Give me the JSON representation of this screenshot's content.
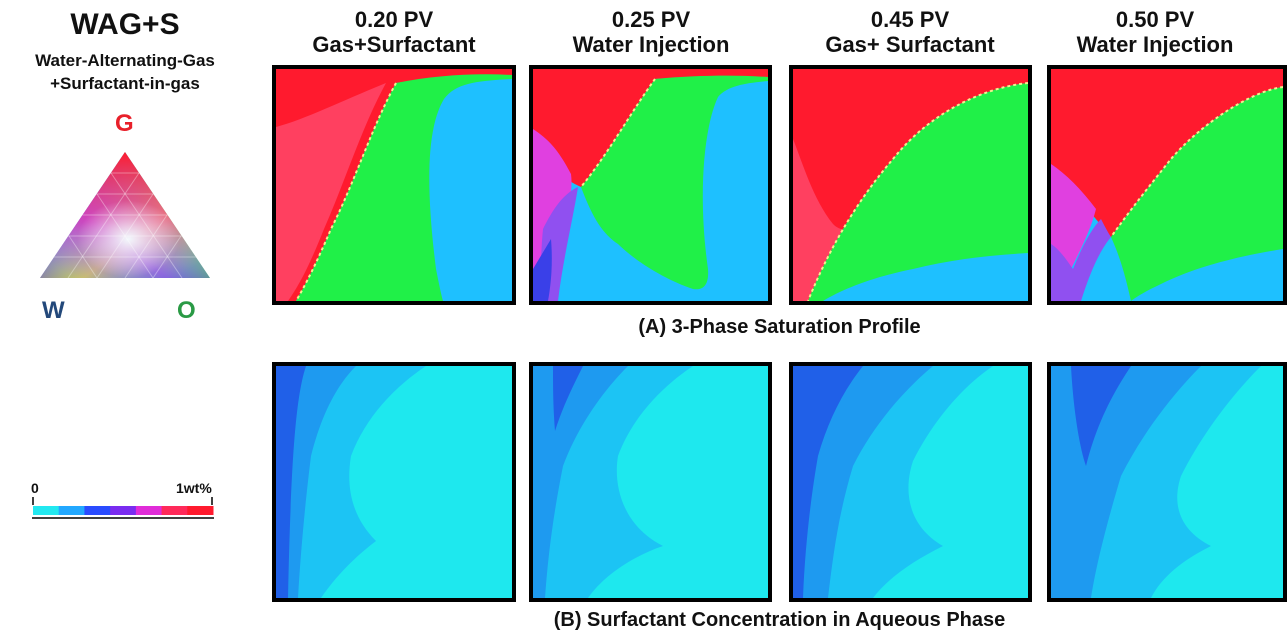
{
  "legend": {
    "title": "WAG+S",
    "subtitle_line1": "Water-Alternating-Gas",
    "subtitle_line2": "+Surfactant-in-gas",
    "vertex_top": "G",
    "vertex_left": "W",
    "vertex_right": "O",
    "colors": {
      "gas": "#ff1a2e",
      "water": "#2448ff",
      "oil": "#22e04a",
      "mixed": "#e8ffff"
    }
  },
  "colorbar": {
    "min_label": "0",
    "max_label": "1wt%",
    "colors": [
      "#22e8f0",
      "#22a8ff",
      "#2a4cff",
      "#7a2cf0",
      "#e02cd8",
      "#ff2a5a",
      "#ff1a2e"
    ]
  },
  "columns": [
    {
      "pv": "0.20 PV",
      "stage": "Gas+Surfactant"
    },
    {
      "pv": "0.25 PV",
      "stage": "Water Injection"
    },
    {
      "pv": "0.45 PV",
      "stage": "Gas+ Surfactant"
    },
    {
      "pv": "0.50 PV",
      "stage": "Water Injection"
    }
  ],
  "rows": [
    {
      "caption": "(A) 3-Phase Saturation Profile"
    },
    {
      "caption": "(B) Surfactant Concentration in Aqueous Phase"
    }
  ],
  "phase_colors": {
    "gas": "#ff1a2e",
    "gas_trapped": "#ff4060",
    "oil": "#20f048",
    "water": "#1ec0ff",
    "mix_violet": "#9050f0",
    "mix_magenta": "#e040e0",
    "mix_blue": "#3a40e8"
  },
  "conc_colors": {
    "low": "#1ee8ee",
    "mid_low": "#1cc4f4",
    "mid": "#1e9af0",
    "high": "#2060e8"
  }
}
